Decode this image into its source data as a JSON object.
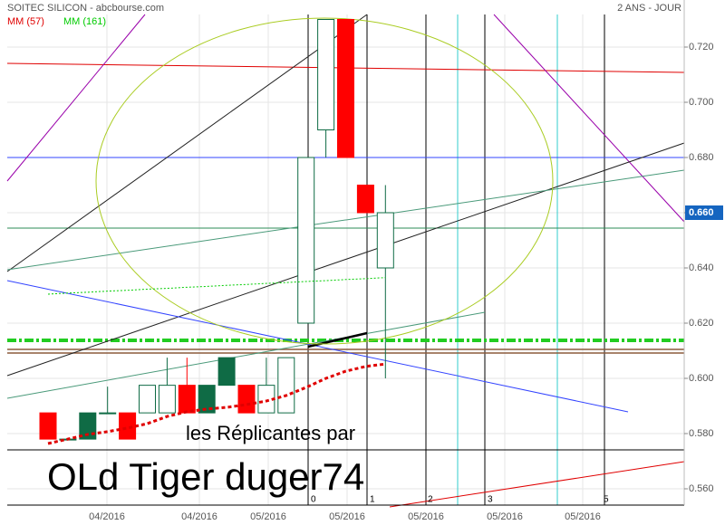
{
  "chart_data": {
    "type": "candlestick",
    "title": "SOITEC SILICON - abcbourse.com",
    "period": "2 ANS - JOUR",
    "open": [
      0.5875,
      0.578,
      0.578,
      0.5875,
      0.5875,
      0.5875,
      0.5875,
      0.5975,
      0.5875,
      0.5975,
      0.5975,
      0.5875,
      0.5875,
      0.62,
      0.69,
      0.73,
      0.67,
      0.64
    ],
    "high": [
      0.5875,
      0.578,
      0.5875,
      0.597,
      0.5875,
      0.5975,
      0.6075,
      0.6075,
      0.5975,
      0.6075,
      0.5975,
      0.6075,
      0.6075,
      0.68,
      0.73,
      0.73,
      0.67,
      0.67
    ],
    "low": [
      0.578,
      0.578,
      0.578,
      0.5875,
      0.578,
      0.5875,
      0.5875,
      0.5875,
      0.5875,
      0.5975,
      0.5875,
      0.5875,
      0.5875,
      0.62,
      0.68,
      0.68,
      0.66,
      0.6
    ],
    "close": [
      0.578,
      0.578,
      0.5875,
      0.5875,
      0.578,
      0.5975,
      0.5975,
      0.5875,
      0.5975,
      0.6075,
      0.5875,
      0.5975,
      0.6075,
      0.68,
      0.73,
      0.68,
      0.66,
      0.66
    ],
    "candle_colors": [
      "#ff0000",
      "none",
      "#0f6b45",
      "none",
      "#ff0000",
      "none",
      "none",
      "#ff0000",
      "#0f6b45",
      "#0f6b45",
      "#ff0000",
      "none",
      "none",
      "none",
      "none",
      "#ff0000",
      "#ff0000",
      "none"
    ],
    "series": [
      {
        "name": "MM (57)",
        "color": "#e00000",
        "values": [
          0.5764,
          0.578,
          0.5797,
          0.5807,
          0.582,
          0.5836,
          0.5862,
          0.5879,
          0.5889,
          0.5895,
          0.5905,
          0.5918,
          0.5938,
          0.5967,
          0.6,
          0.6026,
          0.6043,
          0.6052
        ]
      },
      {
        "name": "MM (161)",
        "color": "#00cc00",
        "values": [
          0.6305,
          0.6309,
          0.6312,
          0.6316,
          0.6319,
          0.6323,
          0.6326,
          0.633,
          0.6333,
          0.6337,
          0.634,
          0.6344,
          0.6347,
          0.6351,
          0.6354,
          0.6358,
          0.6361,
          0.6365
        ]
      }
    ],
    "x_labels": [
      "04/2016",
      "04/2016",
      "05/2016",
      "05/2016",
      "05/2016",
      "05/2016",
      "05/2016"
    ],
    "ylim": [
      0.5541,
      0.7318
    ],
    "yticks": [
      {
        "value": 0.56,
        "label": "0.560"
      },
      {
        "value": 0.58,
        "label": "0.580"
      },
      {
        "value": 0.6,
        "label": "0.600"
      },
      {
        "value": 0.62,
        "label": "0.620"
      },
      {
        "value": 0.64,
        "label": "0.640"
      },
      {
        "value": 0.66,
        "label": "0.660"
      },
      {
        "value": 0.68,
        "label": "0.680"
      },
      {
        "value": 0.7,
        "label": "0.700"
      },
      {
        "value": 0.72,
        "label": "0.720"
      }
    ],
    "last": {
      "value": 0.66,
      "label": "0.660"
    },
    "grid": true,
    "annotations": {
      "wave_labels": [
        "0",
        "1",
        "2",
        "3",
        "5"
      ],
      "text1": "les Réplicantes par",
      "text2": "OLd Tiger duger74"
    }
  }
}
